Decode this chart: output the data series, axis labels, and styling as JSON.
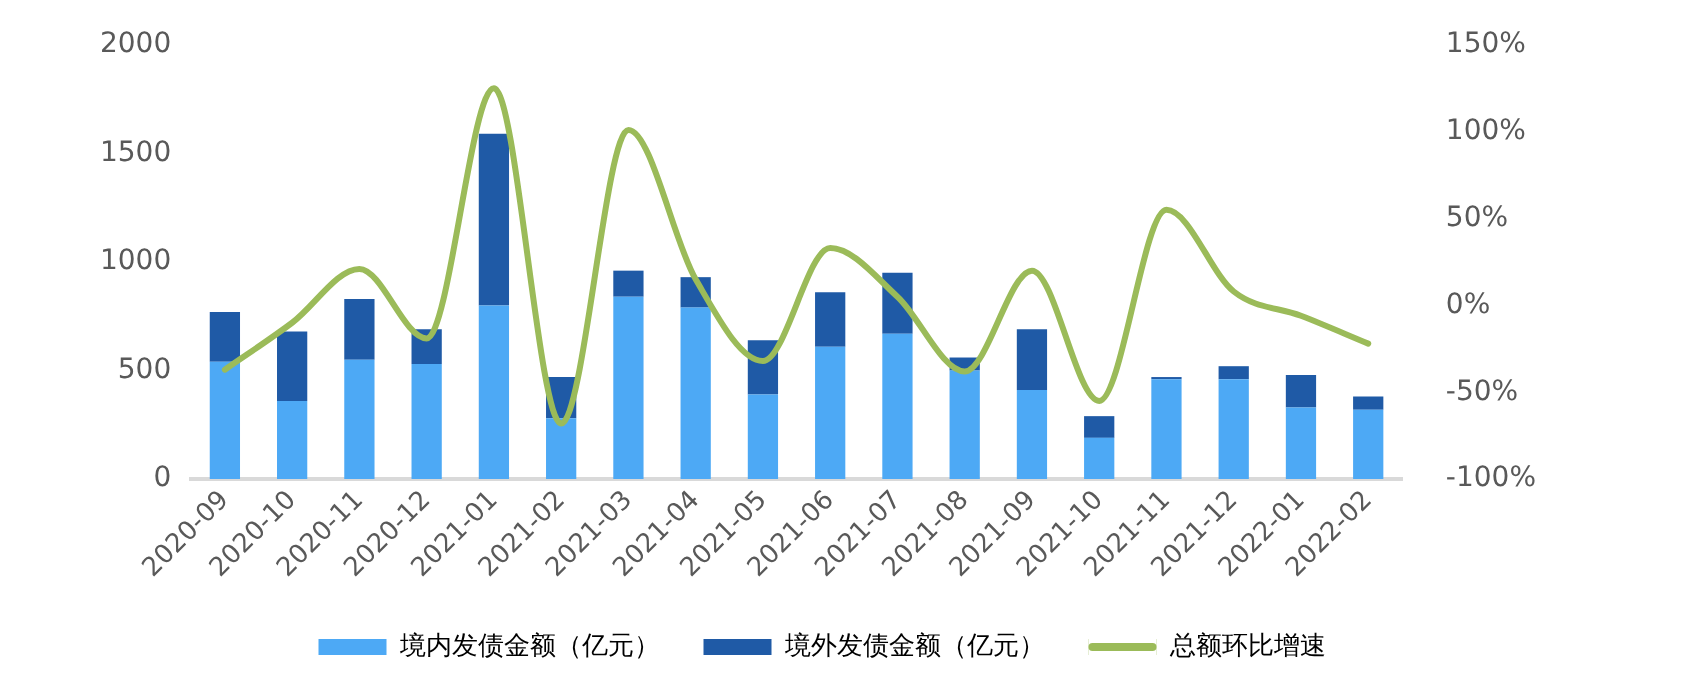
{
  "chart_data": {
    "type": "bar",
    "stacked": true,
    "categories": [
      "2020-09",
      "2020-10",
      "2020-11",
      "2020-12",
      "2021-01",
      "2021-02",
      "2021-03",
      "2021-04",
      "2021-05",
      "2021-06",
      "2021-07",
      "2021-08",
      "2021-09",
      "2021-10",
      "2021-11",
      "2021-12",
      "2022-01",
      "2022-02"
    ],
    "series": [
      {
        "name": "境内发债金额（亿元）",
        "color": "#4da9f5",
        "values": [
          540,
          360,
          550,
          530,
          800,
          280,
          840,
          790,
          390,
          610,
          670,
          500,
          410,
          190,
          460,
          460,
          330,
          320
        ]
      },
      {
        "name": "境外发债金额（亿元）",
        "color": "#1f5aa6",
        "values": [
          230,
          320,
          280,
          160,
          790,
          190,
          120,
          140,
          250,
          250,
          280,
          60,
          280,
          100,
          10,
          60,
          150,
          60
        ]
      },
      {
        "name": "总额环比增速",
        "type": "line",
        "axis": "y2",
        "color": "#9bbb59",
        "values": [
          -37,
          -10,
          21,
          -19,
          125,
          -68,
          101,
          15,
          -32,
          33,
          5,
          -38,
          20,
          -55,
          55,
          8,
          -6,
          -22
        ]
      }
    ],
    "ylim": [
      0,
      2000
    ],
    "yticks": [
      0,
      500,
      1000,
      1500,
      2000
    ],
    "y2lim": [
      -100,
      150
    ],
    "y2ticks": [
      {
        "value": -100,
        "label": "-100%"
      },
      {
        "value": -50,
        "label": "-50%"
      },
      {
        "value": 0,
        "label": "0%"
      },
      {
        "value": 50,
        "label": "50%"
      },
      {
        "value": 100,
        "label": "100%"
      },
      {
        "value": 150,
        "label": "150%"
      }
    ],
    "grid": false,
    "legend": "bottom",
    "marker": "none",
    "line_style": "solid"
  }
}
